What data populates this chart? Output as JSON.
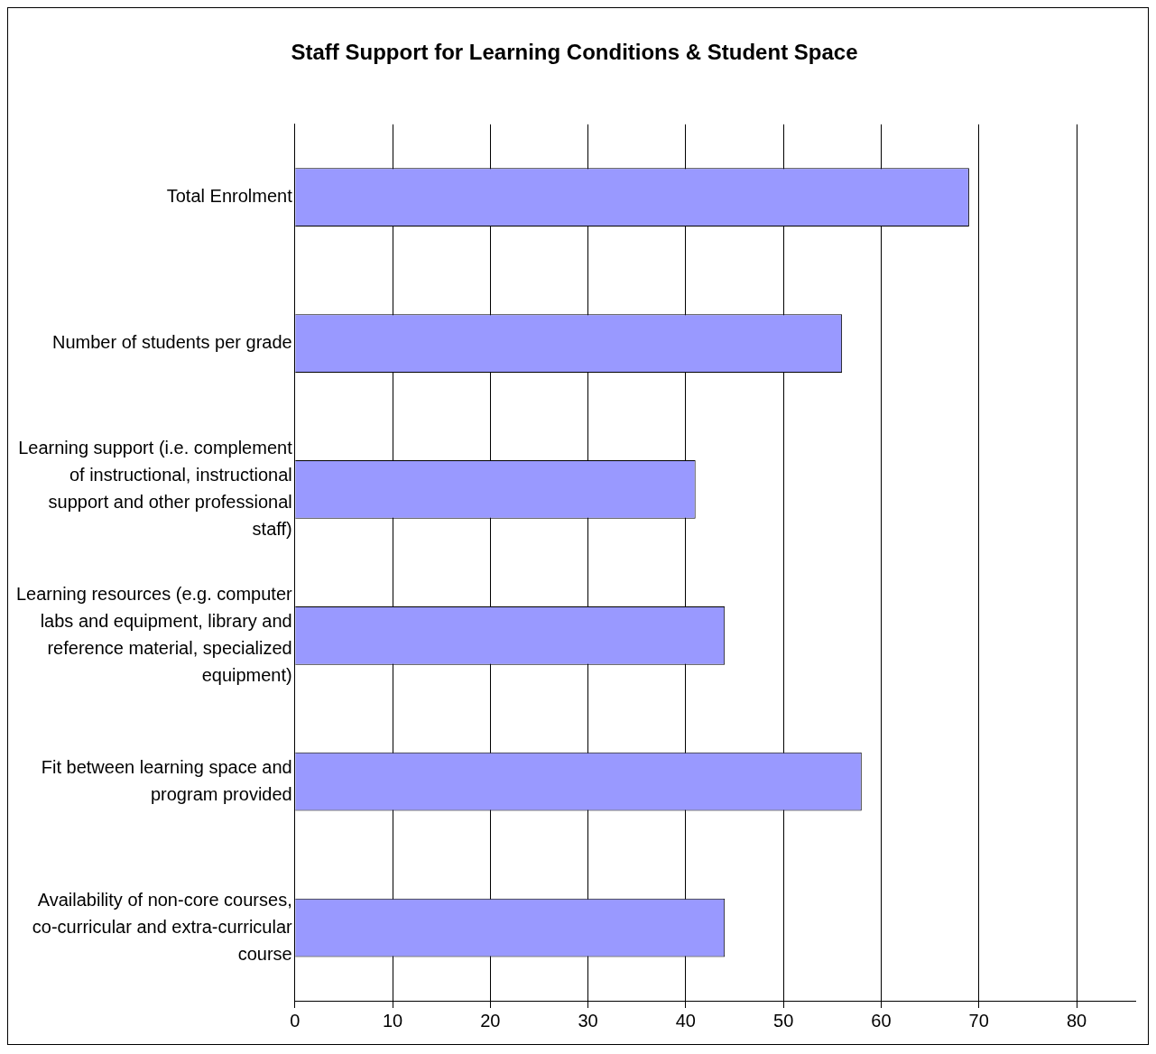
{
  "chart_data": {
    "type": "bar",
    "orientation": "horizontal",
    "title": "Staff Support for Learning Conditions & Student Space",
    "categories": [
      "Total Enrolment",
      "Number of students per grade",
      "Learning support (i.e. complement of instructional, instructional support and other professional staff)",
      "Learning resources (e.g. computer labs and equipment, library and reference material, specialized equipment)",
      "Fit between learning space and program provided",
      "Availability of non-core courses, co-curricular and extra-curricular course"
    ],
    "values": [
      69,
      56,
      41,
      44,
      58,
      44
    ],
    "color": "#9999ff",
    "xlim": [
      0,
      86
    ],
    "xticks": [
      0,
      10,
      20,
      30,
      40,
      50,
      60,
      70,
      80
    ],
    "grid": "x",
    "legend": false
  }
}
